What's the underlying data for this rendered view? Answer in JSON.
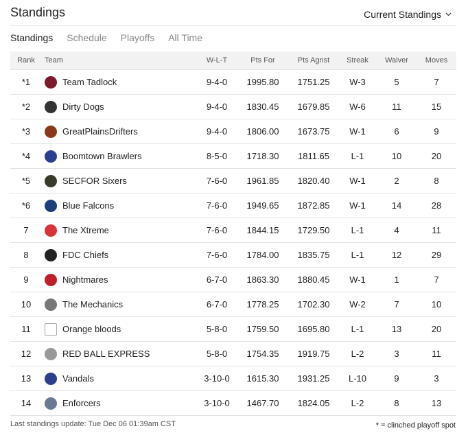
{
  "header": {
    "title": "Standings",
    "selector": "Current Standings"
  },
  "tabs": [
    "Standings",
    "Schedule",
    "Playoffs",
    "All Time"
  ],
  "table": {
    "columns": [
      "Rank",
      "Team",
      "W-L-T",
      "Pts For",
      "Pts Agnst",
      "Streak",
      "Waiver",
      "Moves"
    ],
    "rows": [
      [
        "*1",
        "Team Tadlock",
        "9-4-0",
        "1995.80",
        "1751.25",
        "W-3",
        "5",
        "7"
      ],
      [
        "*2",
        "Dirty Dogs",
        "9-4-0",
        "1830.45",
        "1679.85",
        "W-6",
        "11",
        "15"
      ],
      [
        "*3",
        "GreatPlainsDrifters",
        "9-4-0",
        "1806.00",
        "1673.75",
        "W-1",
        "6",
        "9"
      ],
      [
        "*4",
        "Boomtown Brawlers",
        "8-5-0",
        "1718.30",
        "1811.65",
        "L-1",
        "10",
        "20"
      ],
      [
        "*5",
        "SECFOR Sixers",
        "7-6-0",
        "1961.85",
        "1820.40",
        "W-1",
        "2",
        "8"
      ],
      [
        "*6",
        "Blue Falcons",
        "7-6-0",
        "1949.65",
        "1872.85",
        "W-1",
        "14",
        "28"
      ],
      [
        "7",
        "The Xtreme",
        "7-6-0",
        "1844.15",
        "1729.50",
        "L-1",
        "4",
        "11"
      ],
      [
        "8",
        "FDC Chiefs",
        "7-6-0",
        "1784.00",
        "1835.75",
        "L-1",
        "12",
        "29"
      ],
      [
        "9",
        "Nightmares",
        "6-7-0",
        "1863.30",
        "1880.45",
        "W-1",
        "1",
        "7"
      ],
      [
        "10",
        "The Mechanics",
        "6-7-0",
        "1778.25",
        "1702.30",
        "W-2",
        "7",
        "10"
      ],
      [
        "11",
        "Orange bloods",
        "5-8-0",
        "1759.50",
        "1695.80",
        "L-1",
        "13",
        "20"
      ],
      [
        "12",
        "RED BALL EXPRESS",
        "5-8-0",
        "1754.35",
        "1919.75",
        "L-2",
        "3",
        "11"
      ],
      [
        "13",
        "Vandals",
        "3-10-0",
        "1615.30",
        "1931.25",
        "L-10",
        "9",
        "3"
      ],
      [
        "14",
        "Enforcers",
        "3-10-0",
        "1467.70",
        "1824.05",
        "L-2",
        "8",
        "13"
      ]
    ]
  },
  "footer": {
    "last_update": "Last standings update: Tue Dec 06 01:39am CST",
    "note": "* = clinched playoff spot"
  }
}
